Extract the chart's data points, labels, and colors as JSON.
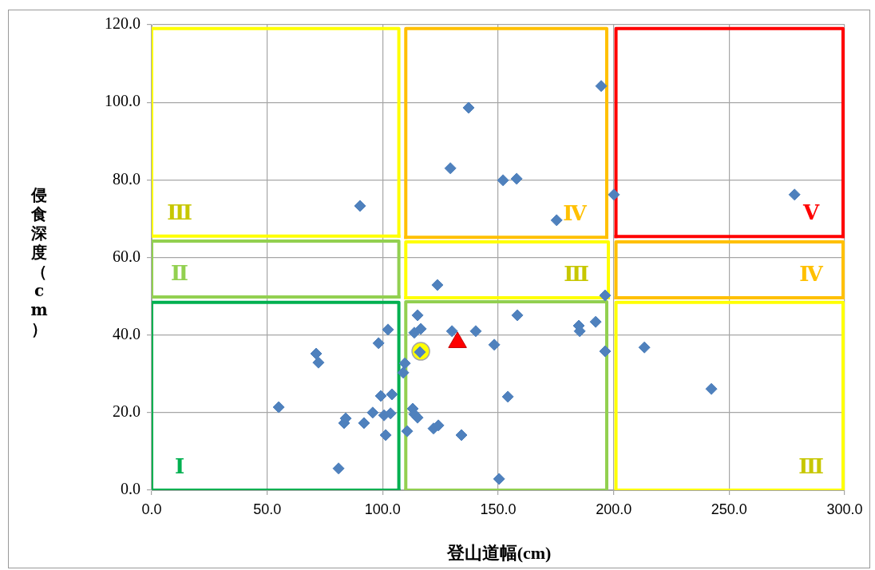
{
  "chart_data": {
    "type": "scatter",
    "xlabel": "登山道幅(cm)",
    "ylabel": "侵食深度（cm）",
    "xlim": [
      0,
      300
    ],
    "xticks": [
      {
        "value": 0,
        "label": "0.0"
      },
      {
        "value": 50,
        "label": "50.0"
      },
      {
        "value": 100,
        "label": "100.0"
      },
      {
        "value": 150,
        "label": "150.0"
      },
      {
        "value": 200,
        "label": "200.0"
      },
      {
        "value": 250,
        "label": "250.0"
      },
      {
        "value": 300,
        "label": "300.0"
      }
    ],
    "ylim": [
      0,
      120
    ],
    "yticks": [
      {
        "value": 0,
        "label": "0.0"
      },
      {
        "value": 20,
        "label": "20.0"
      },
      {
        "value": 40,
        "label": "40.0"
      },
      {
        "value": 60,
        "label": "60.0"
      },
      {
        "value": 80,
        "label": "80.0"
      },
      {
        "value": 100,
        "label": "100.0"
      },
      {
        "value": 120,
        "label": "120.0"
      }
    ],
    "grid": true,
    "legend": false,
    "series": [
      {
        "type": "line",
        "name": "Ⅰ",
        "color": "#00b050",
        "marker": "none",
        "x": [
          0,
          0,
          107,
          107
        ],
        "values": [
          0,
          48.4,
          48.4,
          0
        ]
      },
      {
        "type": "line",
        "color": "#00b050",
        "marker": "none",
        "x": [
          0,
          107
        ],
        "values": [
          0,
          0
        ]
      },
      {
        "type": "line",
        "name": "Ⅱ",
        "color": "#92d050",
        "marker": "none",
        "x": [
          0,
          0,
          107,
          107
        ],
        "values": [
          49.8,
          64.2,
          64.2,
          49.8
        ]
      },
      {
        "type": "line",
        "color": "#92d050",
        "marker": "none",
        "x": [
          0,
          107
        ],
        "values": [
          49.8,
          49.8
        ]
      },
      {
        "type": "line",
        "name": "Ⅲ",
        "color": "#ffff00",
        "marker": "none",
        "x": [
          0,
          0,
          107,
          107
        ],
        "values": [
          65.5,
          119,
          119,
          65.5
        ]
      },
      {
        "type": "line",
        "color": "#ffff00",
        "marker": "none",
        "x": [
          0,
          107
        ],
        "values": [
          65.5,
          65.5
        ]
      },
      {
        "type": "line",
        "color": "#92d050",
        "marker": "none",
        "x": [
          110,
          110,
          197,
          197
        ],
        "values": [
          0,
          48.6,
          48.6,
          0
        ]
      },
      {
        "type": "line",
        "color": "#92d050",
        "marker": "none",
        "x": [
          110,
          197
        ],
        "values": [
          0,
          0
        ]
      },
      {
        "type": "line",
        "name": "Ⅲ",
        "color": "#ffff00",
        "marker": "none",
        "x": [
          110,
          110,
          197.7,
          197.7
        ],
        "values": [
          49.6,
          64,
          64,
          49.6
        ]
      },
      {
        "type": "line",
        "color": "#ffff00",
        "marker": "none",
        "x": [
          110,
          197.7
        ],
        "values": [
          49.6,
          49.6
        ]
      },
      {
        "type": "line",
        "name": "Ⅳ",
        "color": "#ffc000",
        "marker": "none",
        "x": [
          110,
          110,
          197,
          197
        ],
        "values": [
          65.2,
          119,
          119,
          65.2
        ]
      },
      {
        "type": "line",
        "color": "#ffc000",
        "marker": "none",
        "x": [
          110,
          197
        ],
        "values": [
          65.2,
          65.2
        ]
      },
      {
        "type": "line",
        "name": "Ⅴ",
        "color": "#ff0000",
        "marker": "none",
        "x": [
          201,
          201,
          299.3,
          299.3
        ],
        "values": [
          65.4,
          119,
          119,
          65.4
        ]
      },
      {
        "type": "line",
        "color": "#ff0000",
        "marker": "none",
        "x": [
          201,
          299.3
        ],
        "values": [
          65.4,
          65.4
        ]
      },
      {
        "type": "line",
        "name": "Ⅳ",
        "color": "#ffc000",
        "marker": "none",
        "x": [
          201,
          201,
          299.3,
          299.3
        ],
        "values": [
          49.6,
          64,
          64,
          49.6
        ]
      },
      {
        "type": "line",
        "color": "#ffc000",
        "marker": "none",
        "x": [
          201,
          299.3
        ],
        "values": [
          49.6,
          49.6
        ]
      },
      {
        "type": "line",
        "name": "Ⅲ",
        "color": "#ffff00",
        "marker": "none",
        "x": [
          201,
          201,
          299.3,
          299.3
        ],
        "values": [
          0,
          48.4,
          48.4,
          0
        ]
      },
      {
        "type": "line",
        "color": "#ffff00",
        "marker": "none",
        "x": [
          201,
          299.3
        ],
        "values": [
          0,
          0
        ]
      },
      {
        "color": "#ffff00",
        "marker": "circle",
        "x": [
          116.5
        ],
        "values": [
          35.8
        ]
      },
      {
        "color": "#4f81bd",
        "marker": "diamond",
        "x": [
          55.0,
          71.2,
          72.2,
          80.9,
          83.3,
          84.0,
          90.2,
          91.9,
          95.7,
          98.2,
          99.2,
          100.6,
          101.3,
          102.3,
          103.4,
          104.0,
          109.6,
          108.9,
          110.6,
          113.0,
          113.7,
          115.1,
          113.7,
          116.5,
          116.1,
          115.1,
          123.7,
          122.0,
          124.1,
          130.0,
          134.1,
          137.2,
          129.3,
          140.3,
          148.3,
          150.4,
          152.1,
          158.0,
          154.2,
          158.3,
          175.3,
          184.9,
          185.3,
          192.2,
          194.6,
          196.3,
          196.3,
          200.1,
          213.3,
          242.3,
          278.3
        ],
        "values": [
          21.4,
          35.2,
          32.9,
          5.6,
          17.3,
          18.5,
          73.3,
          17.3,
          20.0,
          37.9,
          24.3,
          19.3,
          14.2,
          41.4,
          19.8,
          24.7,
          32.7,
          30.3,
          15.2,
          21.0,
          19.6,
          45.1,
          40.6,
          41.6,
          35.6,
          18.7,
          52.9,
          15.9,
          16.7,
          41.0,
          14.2,
          98.6,
          83.0,
          41.0,
          37.5,
          2.9,
          79.9,
          80.3,
          24.1,
          45.1,
          69.6,
          42.4,
          41.0,
          43.4,
          104.2,
          50.2,
          35.8,
          76.2,
          36.8,
          26.1,
          76.2
        ]
      },
      {
        "color": "#ff0000",
        "marker": "triangle",
        "x": [
          132.4
        ],
        "values": [
          38.1
        ]
      }
    ]
  }
}
